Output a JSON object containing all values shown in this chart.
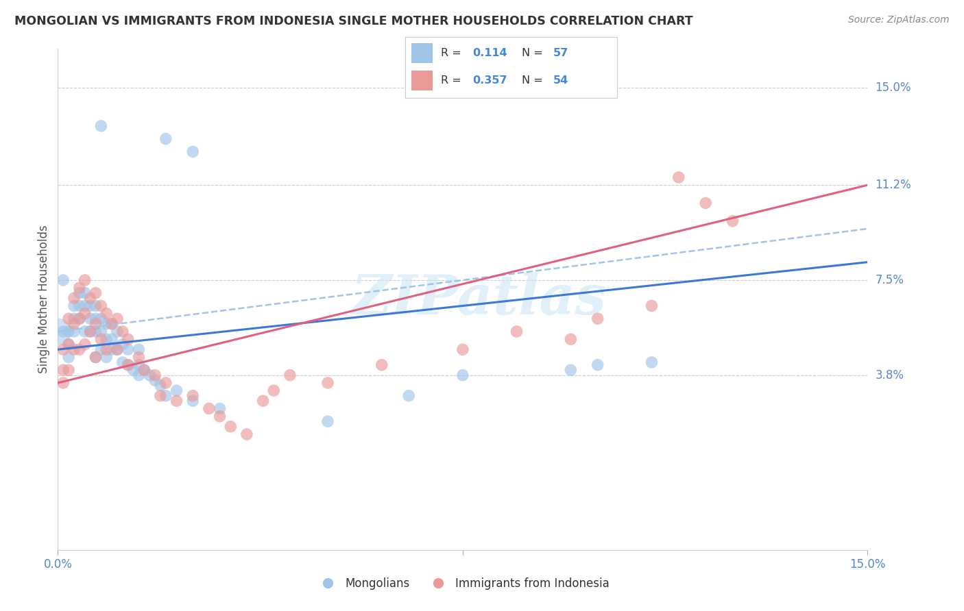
{
  "title": "MONGOLIAN VS IMMIGRANTS FROM INDONESIA SINGLE MOTHER HOUSEHOLDS CORRELATION CHART",
  "source": "Source: ZipAtlas.com",
  "ylabel": "Single Mother Households",
  "ytick_values": [
    0.038,
    0.075,
    0.112,
    0.15
  ],
  "ytick_labels": [
    "3.8%",
    "7.5%",
    "11.2%",
    "15.0%"
  ],
  "xmin": 0.0,
  "xmax": 0.15,
  "ymin": -0.03,
  "ymax": 0.165,
  "watermark": "ZIPatlas",
  "mongolian_color": "#9fc5e8",
  "indonesia_color": "#ea9999",
  "mongolian_line_color": "#3c78d8",
  "indonesia_line_color": "#e06080",
  "dashed_line_color": "#9fc5e8",
  "background_color": "#ffffff",
  "grid_color": "#cccccc",
  "legend_box_color": "#dddddd",
  "blue_label_R": "0.114",
  "blue_label_N": "57",
  "pink_label_R": "0.357",
  "pink_label_N": "54",
  "mongolian_scatter_x": [
    0.001,
    0.008,
    0.02,
    0.025,
    0.001,
    0.002,
    0.002,
    0.002,
    0.003,
    0.003,
    0.003,
    0.004,
    0.004,
    0.004,
    0.005,
    0.005,
    0.005,
    0.006,
    0.006,
    0.006,
    0.007,
    0.007,
    0.007,
    0.007,
    0.008,
    0.008,
    0.008,
    0.009,
    0.009,
    0.009,
    0.01,
    0.01,
    0.01,
    0.011,
    0.011,
    0.012,
    0.012,
    0.013,
    0.013,
    0.014,
    0.015,
    0.015,
    0.015,
    0.016,
    0.017,
    0.018,
    0.019,
    0.02,
    0.022,
    0.025,
    0.03,
    0.05,
    0.065,
    0.075,
    0.095,
    0.1,
    0.11
  ],
  "mongolian_scatter_y": [
    0.075,
    0.135,
    0.13,
    0.125,
    0.055,
    0.055,
    0.05,
    0.045,
    0.065,
    0.06,
    0.055,
    0.07,
    0.065,
    0.06,
    0.07,
    0.065,
    0.055,
    0.065,
    0.06,
    0.055,
    0.065,
    0.06,
    0.055,
    0.045,
    0.06,
    0.055,
    0.048,
    0.058,
    0.052,
    0.045,
    0.058,
    0.052,
    0.048,
    0.055,
    0.048,
    0.05,
    0.043,
    0.048,
    0.042,
    0.04,
    0.048,
    0.042,
    0.038,
    0.04,
    0.038,
    0.036,
    0.034,
    0.03,
    0.032,
    0.028,
    0.025,
    0.02,
    0.03,
    0.038,
    0.04,
    0.042,
    0.043
  ],
  "indonesia_scatter_x": [
    0.001,
    0.001,
    0.001,
    0.002,
    0.002,
    0.002,
    0.003,
    0.003,
    0.003,
    0.004,
    0.004,
    0.004,
    0.005,
    0.005,
    0.005,
    0.006,
    0.006,
    0.007,
    0.007,
    0.007,
    0.008,
    0.008,
    0.009,
    0.009,
    0.01,
    0.011,
    0.011,
    0.012,
    0.013,
    0.013,
    0.015,
    0.016,
    0.018,
    0.019,
    0.02,
    0.022,
    0.025,
    0.028,
    0.03,
    0.032,
    0.035,
    0.038,
    0.04,
    0.043,
    0.05,
    0.06,
    0.075,
    0.085,
    0.095,
    0.1,
    0.11,
    0.115,
    0.12,
    0.125
  ],
  "indonesia_scatter_y": [
    0.048,
    0.04,
    0.035,
    0.06,
    0.05,
    0.04,
    0.068,
    0.058,
    0.048,
    0.072,
    0.06,
    0.048,
    0.075,
    0.062,
    0.05,
    0.068,
    0.055,
    0.07,
    0.058,
    0.045,
    0.065,
    0.052,
    0.062,
    0.048,
    0.058,
    0.06,
    0.048,
    0.055,
    0.052,
    0.042,
    0.045,
    0.04,
    0.038,
    0.03,
    0.035,
    0.028,
    0.03,
    0.025,
    0.022,
    0.018,
    0.015,
    0.028,
    0.032,
    0.038,
    0.035,
    0.042,
    0.048,
    0.055,
    0.052,
    0.06,
    0.065,
    0.115,
    0.105,
    0.098
  ],
  "mong_line_x0": 0.0,
  "mong_line_y0": 0.048,
  "mong_line_x1": 0.15,
  "mong_line_y1": 0.082,
  "indo_line_x0": 0.0,
  "indo_line_y0": 0.035,
  "indo_line_x1": 0.15,
  "indo_line_y1": 0.112,
  "dash_line_x0": 0.0,
  "dash_line_y0": 0.055,
  "dash_line_x1": 0.15,
  "dash_line_y1": 0.095
}
